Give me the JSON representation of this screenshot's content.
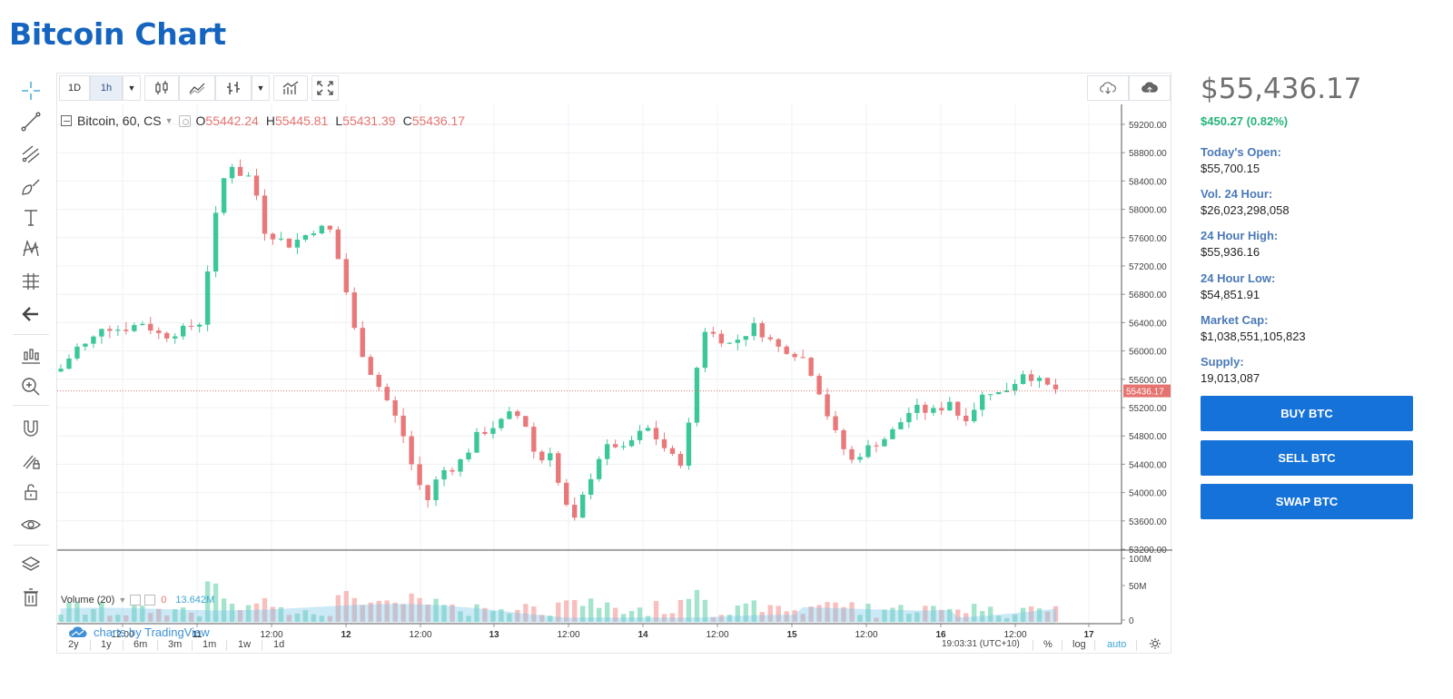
{
  "page": {
    "title": "Bitcoin Chart"
  },
  "toolbar": {
    "intervals": [
      "1D",
      "1h"
    ],
    "active_interval": "1h",
    "icons": [
      "candles-icon",
      "line-chart-icon",
      "bar-compare-icon",
      "indicators-icon",
      "fullscreen-icon"
    ],
    "right_icons": [
      "cloud-download-icon",
      "cloud-upload-icon"
    ]
  },
  "left_tools": [
    "crosshair-icon",
    "trend-line-icon",
    "pitchfork-icon",
    "brush-icon",
    "text-icon",
    "pattern-icon",
    "measure-icon",
    "back-arrow-icon",
    "ruler-chart-icon",
    "zoom-in-icon",
    "magnet-icon",
    "lock-pencil-icon",
    "unlock-icon",
    "eye-icon",
    "layers-icon",
    "trash-icon"
  ],
  "legend": {
    "symbol": "Bitcoin, 60, CS",
    "open_label": "O",
    "open": "55442.24",
    "high_label": "H",
    "high": "55445.81",
    "low_label": "L",
    "low": "55431.39",
    "close_label": "C",
    "close": "55436.17"
  },
  "volume_legend": {
    "name": "Volume (20)",
    "value": "0",
    "ma": "13.642M"
  },
  "branding": "charts by TradingView",
  "bottom_bar": {
    "ranges": [
      "2y",
      "1y",
      "6m",
      "3m",
      "1m",
      "1w",
      "1d"
    ],
    "time": "19:03:31 (UTC+10)",
    "percent": "%",
    "log": "log",
    "auto": "auto"
  },
  "chart_data": {
    "type": "candlestick",
    "price_axis": {
      "ylim": [
        53200,
        59200
      ],
      "ticks": [
        "59200.00",
        "58800.00",
        "58400.00",
        "58000.00",
        "57600.00",
        "57200.00",
        "56800.00",
        "56400.00",
        "56000.00",
        "55600.00",
        "55200.00",
        "54800.00",
        "54400.00",
        "54000.00",
        "53600.00",
        "53200.00"
      ],
      "last_price_label": "55436.17",
      "last_price": 55436.17
    },
    "volume_axis": {
      "ticks": [
        "100M",
        "50M",
        "0"
      ],
      "ylim": [
        0,
        110
      ]
    },
    "time_axis": {
      "labels": [
        "12:00",
        "11",
        "12:00",
        "12",
        "12:00",
        "13",
        "12:00",
        "14",
        "12:00",
        "15",
        "12:00",
        "16",
        "12:00",
        "17"
      ]
    },
    "colors": {
      "up": "#26a69a",
      "down": "#ef6f6c",
      "up_fill": "#3cc79a",
      "down_fill": "#e9787a",
      "price_line": "#e5736f",
      "ma_area": "#6fc3ea"
    }
  },
  "info": {
    "price": "$55,436.17",
    "change": "$450.27 (0.82%)",
    "stats": [
      {
        "label": "Today's Open:",
        "value": "$55,700.15"
      },
      {
        "label": "Vol. 24 Hour:",
        "value": "$26,023,298,058"
      },
      {
        "label": "24 Hour High:",
        "value": "$55,936.16"
      },
      {
        "label": "24 Hour Low:",
        "value": "$54,851.91"
      },
      {
        "label": "Market Cap:",
        "value": "$1,038,551,105,823"
      },
      {
        "label": "Supply:",
        "value": "19,013,087"
      }
    ],
    "buttons": [
      "BUY BTC",
      "SELL BTC",
      "SWAP BTC"
    ]
  }
}
